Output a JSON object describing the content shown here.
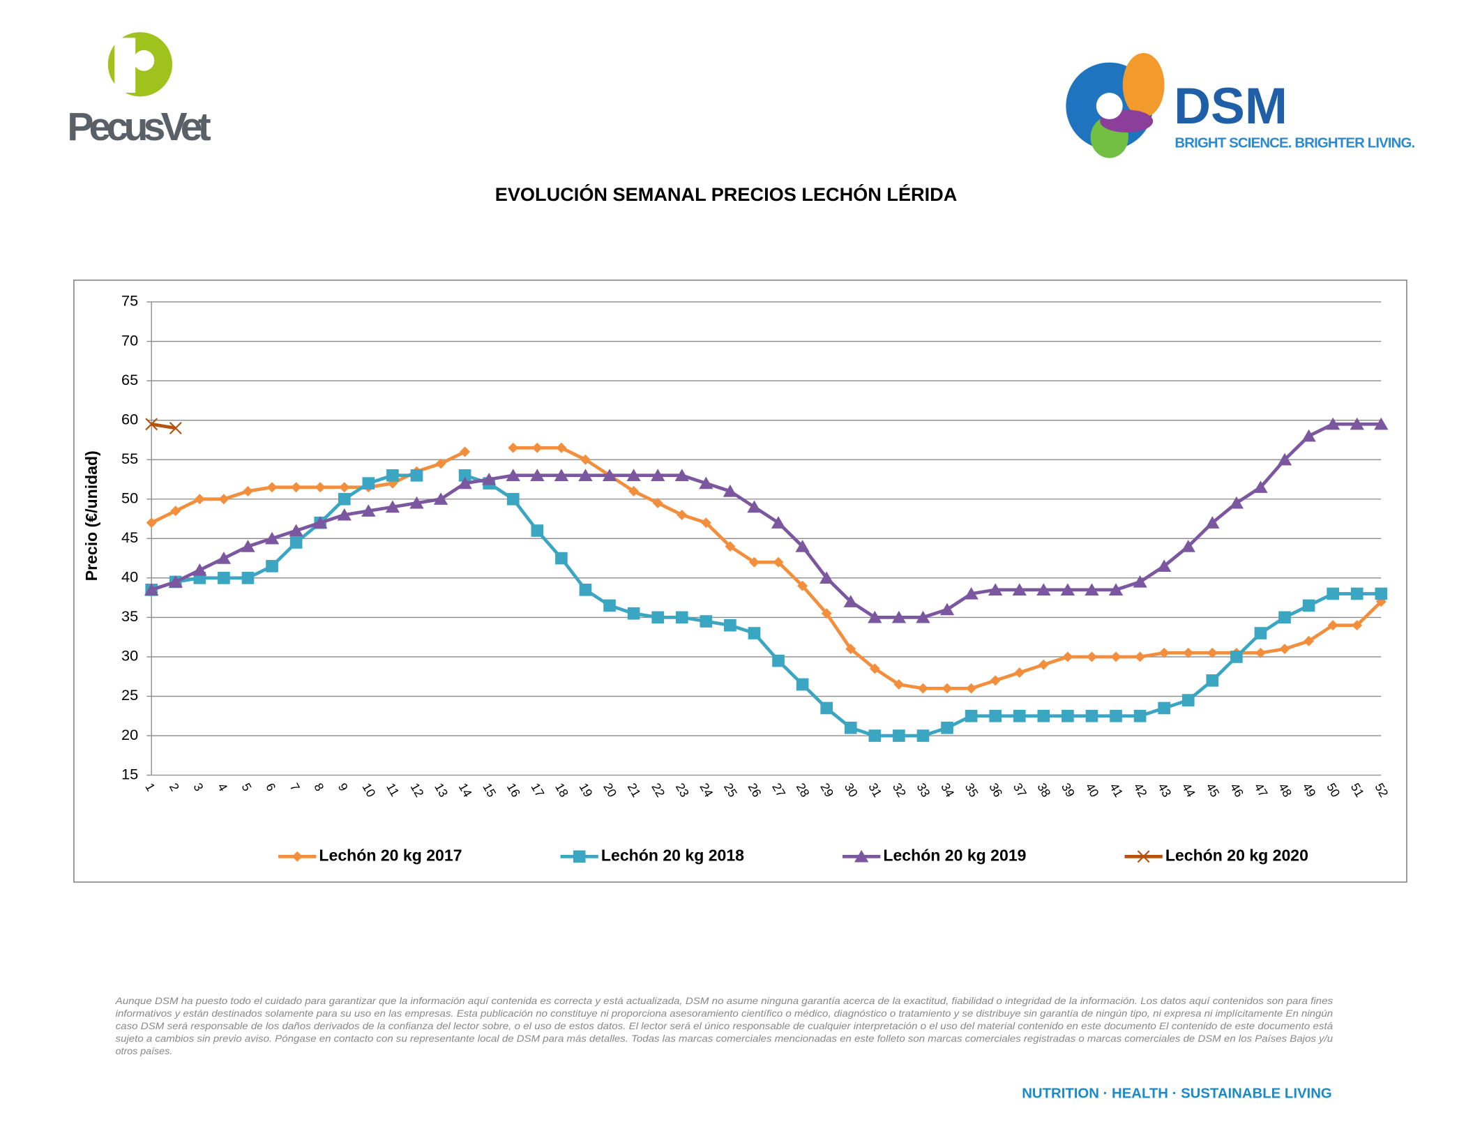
{
  "header": {
    "left_logo": "PecusVet",
    "right_logo": "DSM",
    "tagline": "BRIGHT SCIENCE. BRIGHTER LIVING."
  },
  "chart_data": {
    "type": "line",
    "title": "EVOLUCIÓN SEMANAL PRECIOS LECHÓN LÉRIDA",
    "y_label": "Precio (€/unidad)",
    "categories": [
      "1",
      "2",
      "3",
      "4",
      "5",
      "6",
      "7",
      "8",
      "9",
      "10",
      "11",
      "12",
      "13",
      "14",
      "15",
      "16",
      "17",
      "18",
      "19",
      "20",
      "21",
      "22",
      "23",
      "24",
      "25",
      "26",
      "27",
      "28",
      "29",
      "30",
      "31",
      "32",
      "33",
      "34",
      "35",
      "36",
      "37",
      "38",
      "39",
      "40",
      "41",
      "42",
      "43",
      "44",
      "45",
      "46",
      "47",
      "48",
      "49",
      "50",
      "51",
      "52"
    ],
    "ylim": [
      15,
      75
    ],
    "yticks": [
      15,
      20,
      25,
      30,
      35,
      40,
      45,
      50,
      55,
      60,
      65,
      70,
      75
    ],
    "grid": true,
    "legend": "bottom",
    "series": [
      {
        "name": "Lechón 20 kg 2017",
        "color": "#f28e3c",
        "marker": "diamond",
        "values": [
          47,
          48.5,
          50,
          50,
          51,
          51.5,
          51.5,
          51.5,
          51.5,
          51.5,
          52,
          53.5,
          54.5,
          56,
          null,
          56.5,
          56.5,
          56.5,
          55,
          53,
          51,
          49.5,
          48,
          47,
          44,
          42,
          42,
          39,
          35.5,
          31,
          28.5,
          26.5,
          26,
          26,
          26,
          27,
          28,
          29,
          30,
          30,
          30,
          30,
          30.5,
          30.5,
          30.5,
          30.5,
          30.5,
          31,
          32,
          34,
          34,
          37
        ]
      },
      {
        "name": "Lechón 20 kg 2018",
        "color": "#3aa6c2",
        "marker": "square",
        "values": [
          38.5,
          39.5,
          40,
          40,
          40,
          41.5,
          44.5,
          47,
          50,
          52,
          53,
          53,
          null,
          53,
          52,
          50,
          46,
          42.5,
          38.5,
          36.5,
          35.5,
          35,
          35,
          34.5,
          34,
          33,
          29.5,
          26.5,
          23.5,
          21,
          20,
          20,
          20,
          21,
          22.5,
          22.5,
          22.5,
          22.5,
          22.5,
          22.5,
          22.5,
          22.5,
          23.5,
          24.5,
          27,
          30,
          33,
          35,
          36.5,
          38,
          38,
          38
        ]
      },
      {
        "name": "Lechón 20 kg 2019",
        "color": "#7b57a0",
        "marker": "triangle",
        "values": [
          38.5,
          39.5,
          41,
          42.5,
          44,
          45,
          46,
          47,
          48,
          48.5,
          49,
          49.5,
          50,
          52,
          52.5,
          53,
          53,
          53,
          53,
          53,
          53,
          53,
          53,
          52,
          51,
          49,
          47,
          44,
          40,
          37,
          35,
          35,
          35,
          36,
          38,
          38.5,
          38.5,
          38.5,
          38.5,
          38.5,
          38.5,
          39.5,
          41.5,
          44,
          47,
          49.5,
          51.5,
          55,
          58,
          59.5,
          59.5,
          59.5
        ]
      },
      {
        "name": "Lechón 20 kg 2020",
        "color": "#b5520f",
        "marker": "x",
        "values": [
          59.5,
          59,
          null,
          null,
          null,
          null,
          null,
          null,
          null,
          null,
          null,
          null,
          null,
          null,
          null,
          null,
          null,
          null,
          null,
          null,
          null,
          null,
          null,
          null,
          null,
          null,
          null,
          null,
          null,
          null,
          null,
          null,
          null,
          null,
          null,
          null,
          null,
          null,
          null,
          null,
          null,
          null,
          null,
          null,
          null,
          null,
          null,
          null,
          null,
          null,
          null,
          null
        ]
      }
    ]
  },
  "disclaimer": [
    "Aunque DSM ha puesto todo el cuidado para garantizar que la información aquí contenida es correcta y está actualizada, DSM no asume ninguna garantía acerca de la exactitud, fiabilidad o integridad de la información. Los datos aquí contenidos son para fines",
    "informativos y están destinados solamente para su uso en las empresas. Esta publicación no constituye ni proporciona asesoramiento científico o médico, diagnóstico o tratamiento y se distribuye sin garantía de ningún tipo, ni expresa ni implícitamente En ningún",
    "caso DSM será responsable de los daños derivados de la confianza del lector sobre, o el uso de estos datos. El lector será el único responsable de cualquier interpretación o el uso del material contenido en este documento El contenido de este documento está",
    "sujeto a cambios sin previo aviso. Póngase en contacto con su representante local de DSM para más detalles. Todas las marcas comerciales mencionadas en este folleto son marcas comerciales registradas o marcas comerciales de DSM en los Países Bajos y/u",
    "otros países."
  ],
  "footer": "NUTRITION · HEALTH · SUSTAINABLE LIVING"
}
